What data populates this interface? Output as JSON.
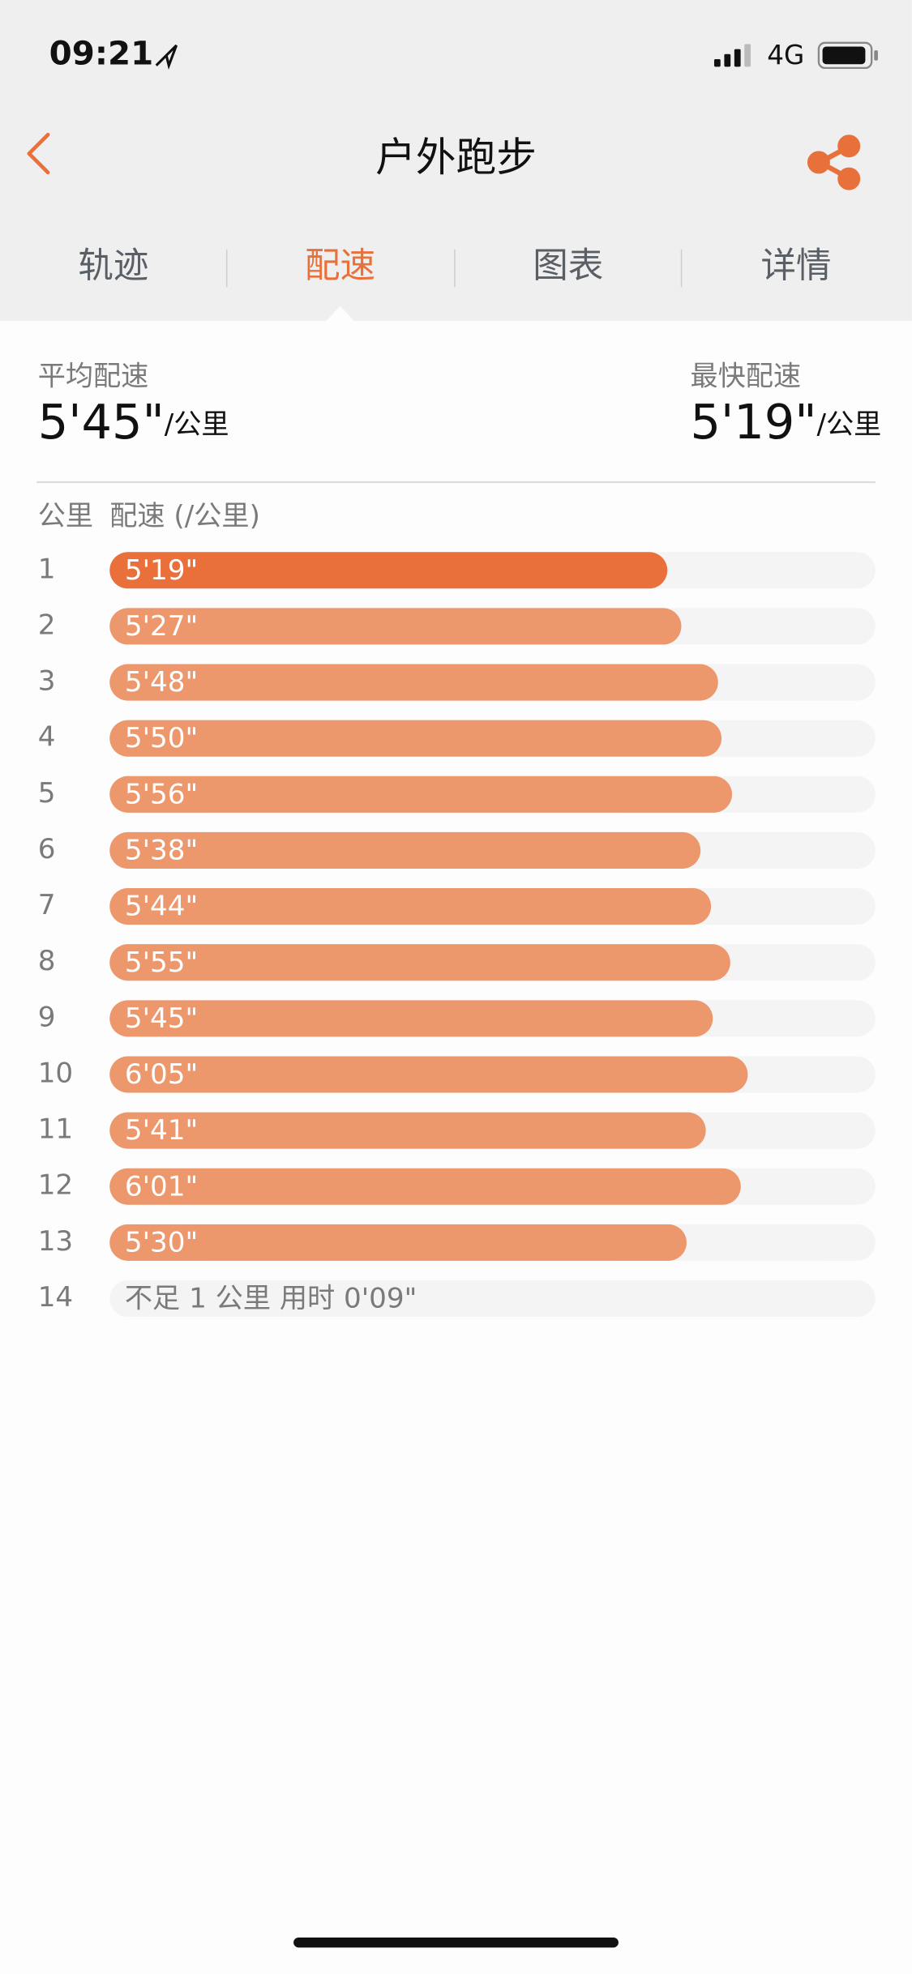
{
  "status_bar": {
    "time": "09:21",
    "network": "4G"
  },
  "header": {
    "title": "户外跑步"
  },
  "tabs": [
    "轨迹",
    "配速",
    "图表",
    "详情"
  ],
  "summary": {
    "average": {
      "label": "平均配速",
      "value": "5'45\"",
      "unit": "/公里"
    },
    "fastest": {
      "label": "最快配速",
      "value": "5'19\"",
      "unit": "/公里"
    }
  },
  "list_header": {
    "km": "公里",
    "pace": "配速 (/公里)"
  },
  "chart_data": {
    "type": "bar",
    "orientation": "horizontal",
    "categories": [
      "1",
      "2",
      "3",
      "4",
      "5",
      "6",
      "7",
      "8",
      "9",
      "10",
      "11",
      "12",
      "13",
      "14"
    ],
    "values": [
      319,
      327,
      348,
      350,
      356,
      338,
      344,
      355,
      345,
      365,
      341,
      361,
      330,
      null
    ],
    "value_labels": [
      "5'19\"",
      "5'27\"",
      "5'48\"",
      "5'50\"",
      "5'56\"",
      "5'38\"",
      "5'44\"",
      "5'55\"",
      "5'45\"",
      "6'05\"",
      "5'41\"",
      "6'01\"",
      "5'30\"",
      "不足 1 公里 用时 0'09\""
    ],
    "xlim": [
      0,
      438
    ],
    "color": "#ec976c",
    "highlight_color": "#e96f3b",
    "track_color": "#f4f4f4"
  }
}
